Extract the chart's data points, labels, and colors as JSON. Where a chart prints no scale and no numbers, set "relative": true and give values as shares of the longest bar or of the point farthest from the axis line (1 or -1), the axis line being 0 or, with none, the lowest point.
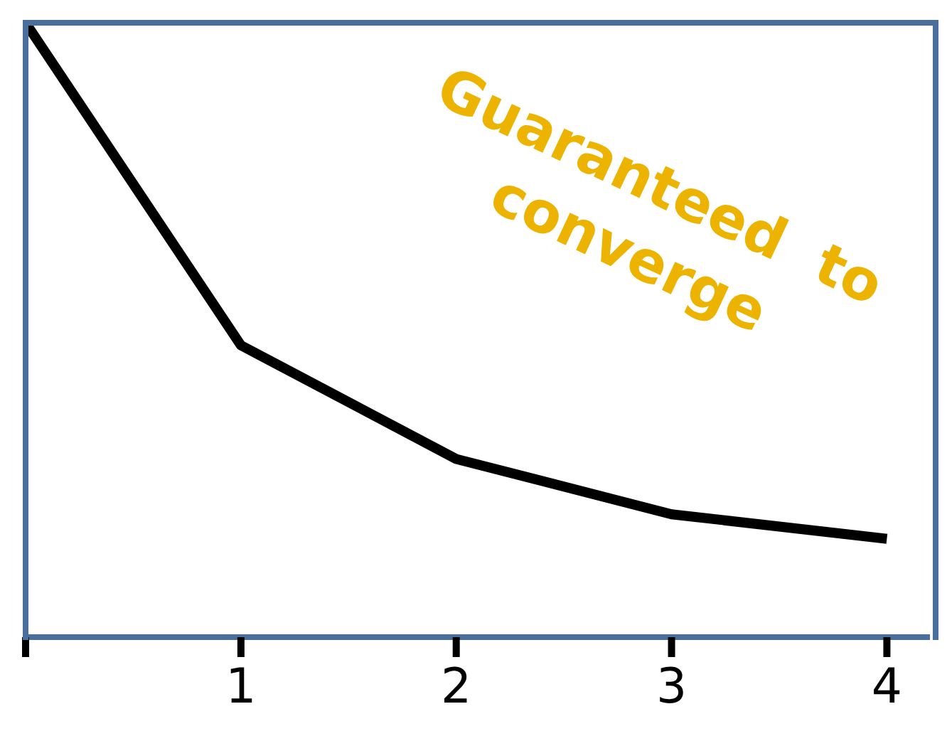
{
  "chart_data": {
    "type": "line",
    "relative": true,
    "x": [
      0,
      1,
      2,
      3,
      4
    ],
    "xlim": [
      0,
      4.2
    ],
    "xticks": [
      {
        "value": 0,
        "label": null
      },
      1,
      2,
      3,
      4
    ],
    "series": [
      {
        "color": "#000000",
        "values": [
          1,
          0.475,
          0.29,
          0.2,
          0.16
        ]
      }
    ],
    "annotations": [
      "Guaranteed  to converge"
    ],
    "marker": "none",
    "line_style": "solid"
  }
}
